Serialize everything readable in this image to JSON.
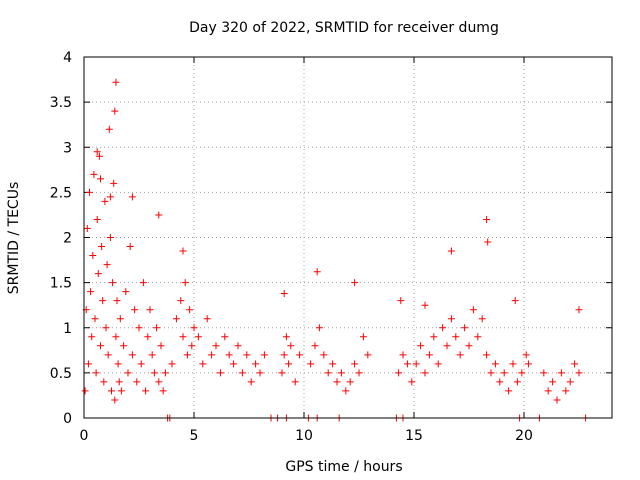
{
  "chart_data": {
    "type": "scatter",
    "title": "Day 320 of 2022, SRMTID for receiver dumg",
    "xlabel": "GPS time / hours",
    "ylabel": "SRMTID / TECUs",
    "xlim": [
      0,
      24
    ],
    "ylim": [
      0,
      4
    ],
    "xticks": [
      0,
      5,
      10,
      15,
      20
    ],
    "xtick_labels": [
      "0",
      "5",
      "10",
      "15",
      "20"
    ],
    "yticks": [
      0,
      0.5,
      1,
      1.5,
      2,
      2.5,
      3,
      3.5,
      4
    ],
    "ytick_labels": [
      "0",
      "0.5",
      "1",
      "1.5",
      "2",
      "2.5",
      "3",
      "3.5",
      "4"
    ],
    "grid": true,
    "marker": "+",
    "color": "#ff0000",
    "series": [
      {
        "name": "SRMTID",
        "x": [
          0.05,
          0.1,
          0.15,
          0.2,
          0.25,
          0.3,
          0.35,
          0.4,
          0.45,
          0.5,
          0.55,
          0.6,
          0.65,
          0.7,
          0.75,
          0.8,
          0.85,
          0.9,
          0.95,
          1.0,
          1.05,
          1.1,
          1.15,
          1.2,
          1.25,
          1.3,
          1.35,
          1.4,
          1.45,
          1.5,
          1.55,
          1.6,
          1.65,
          1.7,
          1.8,
          1.9,
          2.0,
          2.1,
          2.2,
          2.3,
          2.4,
          2.5,
          2.6,
          2.7,
          2.8,
          2.9,
          3.0,
          3.1,
          3.2,
          3.3,
          3.4,
          3.5,
          3.6,
          3.7,
          4.0,
          4.2,
          4.4,
          4.5,
          4.6,
          4.7,
          4.8,
          4.9,
          5.0,
          5.2,
          5.4,
          5.6,
          5.8,
          6.0,
          6.2,
          6.4,
          6.6,
          6.8,
          7.0,
          7.2,
          7.4,
          7.6,
          7.8,
          8.0,
          8.2,
          9.0,
          9.1,
          9.2,
          9.3,
          9.4,
          9.6,
          9.8,
          10.3,
          10.5,
          10.7,
          10.9,
          11.1,
          11.3,
          11.5,
          11.7,
          11.9,
          12.1,
          12.3,
          12.5,
          12.7,
          12.9,
          14.3,
          14.5,
          14.7,
          14.9,
          15.1,
          15.3,
          15.5,
          15.7,
          15.9,
          16.1,
          16.3,
          16.5,
          16.7,
          16.9,
          17.1,
          17.3,
          17.5,
          17.7,
          17.9,
          18.1,
          18.3,
          18.5,
          18.7,
          18.9,
          19.1,
          19.3,
          19.5,
          19.7,
          19.9,
          20.1,
          20.2,
          20.9,
          21.1,
          21.3,
          21.5,
          21.7,
          21.9,
          22.1,
          22.3,
          22.5,
          0.6,
          0.75,
          1.2,
          1.4,
          1.45,
          2.2,
          3.4,
          4.5,
          9.1,
          10.6,
          12.3,
          14.4,
          15.5,
          16.7,
          18.3,
          18.35,
          19.6,
          22.5,
          3.8,
          3.9,
          8.5,
          8.8,
          9.2,
          10.2,
          10.6,
          11.6,
          14.2,
          14.5,
          19.8,
          20.7,
          22.8
        ],
        "y": [
          0.3,
          1.2,
          2.1,
          0.6,
          2.5,
          1.4,
          0.9,
          1.8,
          2.7,
          1.1,
          0.5,
          2.2,
          1.6,
          2.9,
          0.8,
          1.9,
          1.3,
          0.4,
          2.4,
          1.0,
          1.7,
          0.7,
          3.2,
          2.0,
          0.3,
          1.5,
          2.6,
          0.2,
          0.9,
          1.3,
          0.6,
          0.4,
          1.1,
          0.3,
          0.8,
          1.4,
          0.5,
          1.9,
          0.7,
          1.2,
          0.4,
          1.0,
          0.6,
          1.5,
          0.3,
          0.9,
          1.2,
          0.7,
          0.5,
          1.0,
          0.4,
          0.8,
          0.3,
          0.5,
          0.6,
          1.1,
          1.3,
          0.9,
          1.5,
          0.7,
          1.2,
          0.8,
          1.0,
          0.9,
          0.6,
          1.1,
          0.7,
          0.8,
          0.5,
          0.9,
          0.7,
          0.6,
          0.8,
          0.5,
          0.7,
          0.4,
          0.6,
          0.5,
          0.7,
          0.5,
          0.7,
          0.9,
          0.6,
          0.8,
          0.4,
          0.7,
          0.6,
          0.8,
          1.0,
          0.7,
          0.5,
          0.6,
          0.4,
          0.5,
          0.3,
          0.4,
          0.6,
          0.5,
          0.9,
          0.7,
          0.5,
          0.7,
          0.6,
          0.4,
          0.6,
          0.8,
          0.5,
          0.7,
          0.9,
          0.6,
          1.0,
          0.8,
          1.1,
          0.9,
          0.7,
          1.0,
          0.8,
          1.2,
          0.9,
          1.1,
          0.7,
          0.5,
          0.6,
          0.4,
          0.5,
          0.3,
          0.6,
          0.4,
          0.5,
          0.7,
          0.6,
          0.5,
          0.3,
          0.4,
          0.2,
          0.5,
          0.3,
          0.4,
          0.6,
          0.5,
          2.95,
          2.65,
          2.45,
          3.4,
          3.72,
          2.45,
          2.25,
          1.85,
          1.38,
          1.62,
          1.5,
          1.3,
          1.25,
          1.85,
          2.2,
          1.95,
          1.3,
          1.2,
          0.0,
          0.0,
          0.0,
          0.0,
          0.0,
          0.0,
          0.0,
          0.0,
          0.0,
          0.0,
          0.0,
          0.0,
          0.0
        ]
      }
    ]
  }
}
